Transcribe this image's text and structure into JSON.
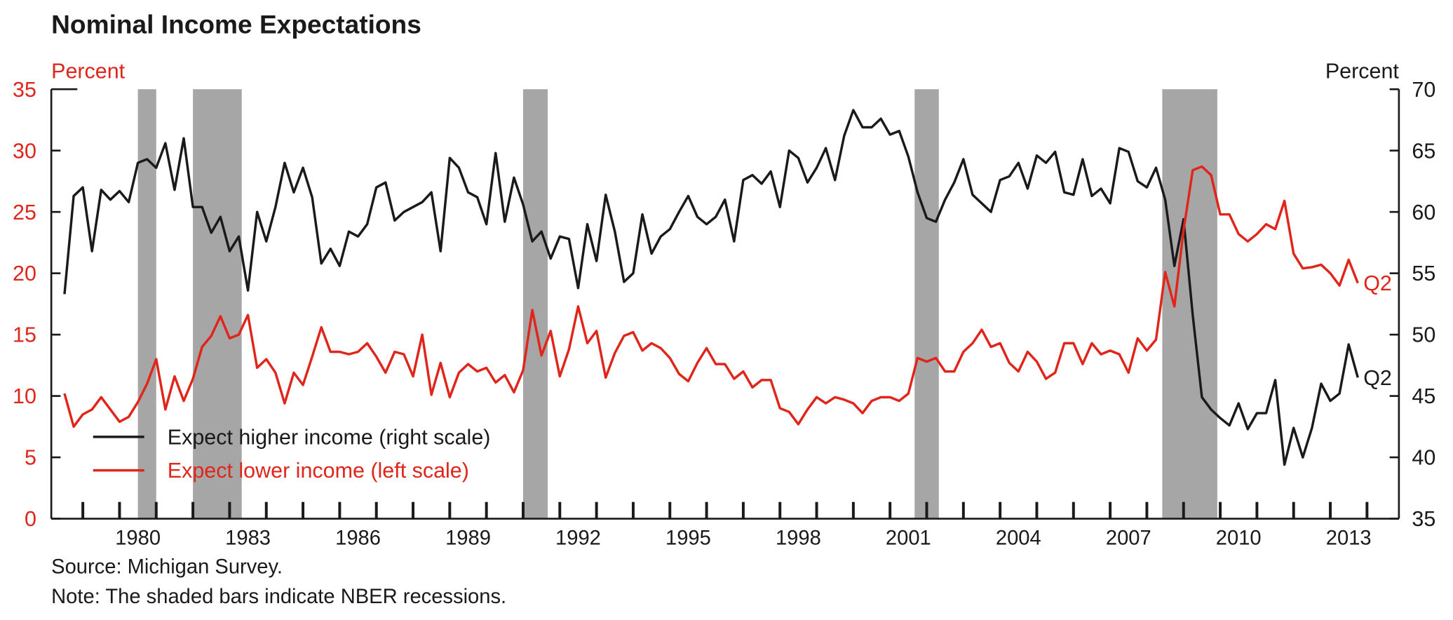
{
  "chart_data": {
    "type": "line",
    "title": "Nominal Income Expectations",
    "ylabel": "Percent",
    "y2label": "Percent",
    "source": "Source: Michigan Survey.",
    "note": "Note: The shaded bars indicate NBER recessions.",
    "legend": "lower left",
    "xlim": [
      1977.64,
      2014.37
    ],
    "xticks": [
      1980,
      1983,
      1986,
      1989,
      1992,
      1995,
      1998,
      2001,
      2004,
      2007,
      2010,
      2013
    ],
    "xticks_minor": [
      1978.5,
      1979.5,
      1980.5,
      1981.5,
      1982.5,
      1983.5,
      1984.5,
      1985.5,
      1986.5,
      1987.5,
      1988.5,
      1989.5,
      1990.5,
      1991.5,
      1992.5,
      1993.5,
      1994.5,
      1995.5,
      1996.5,
      1997.5,
      1998.5,
      1999.5,
      2000.5,
      2001.5,
      2002.5,
      2003.5,
      2004.5,
      2005.5,
      2006.5,
      2007.5,
      2008.5,
      2009.5,
      2010.5,
      2011.5,
      2012.5,
      2013.5
    ],
    "ylim": [
      0,
      35
    ],
    "yticks": [
      0,
      5,
      10,
      15,
      20,
      25,
      30,
      35
    ],
    "y2lim": [
      35,
      70
    ],
    "y2ticks": [
      35,
      40,
      45,
      50,
      55,
      60,
      65,
      70
    ],
    "recessions": [
      [
        1980.0,
        1980.5
      ],
      [
        1981.5,
        1982.83
      ],
      [
        1990.5,
        1991.17
      ],
      [
        2001.17,
        2001.83
      ],
      [
        2007.92,
        2009.42
      ]
    ],
    "recession_color": "#a6a6a6",
    "x": [
      1978,
      1978.25,
      1978.5,
      1978.75,
      1979,
      1979.25,
      1979.5,
      1979.75,
      1980,
      1980.25,
      1980.5,
      1980.75,
      1981,
      1981.25,
      1981.5,
      1981.75,
      1982,
      1982.25,
      1982.5,
      1982.75,
      1983,
      1983.25,
      1983.5,
      1983.75,
      1984,
      1984.25,
      1984.5,
      1984.75,
      1985,
      1985.25,
      1985.5,
      1985.75,
      1986,
      1986.25,
      1986.5,
      1986.75,
      1987,
      1987.25,
      1987.5,
      1987.75,
      1988,
      1988.25,
      1988.5,
      1988.75,
      1989,
      1989.25,
      1989.5,
      1989.75,
      1990,
      1990.25,
      1990.5,
      1990.75,
      1991,
      1991.25,
      1991.5,
      1991.75,
      1992,
      1992.25,
      1992.5,
      1992.75,
      1993,
      1993.25,
      1993.5,
      1993.75,
      1994,
      1994.25,
      1994.5,
      1994.75,
      1995,
      1995.25,
      1995.5,
      1995.75,
      1996,
      1996.25,
      1996.5,
      1996.75,
      1997,
      1997.25,
      1997.5,
      1997.75,
      1998,
      1998.25,
      1998.5,
      1998.75,
      1999,
      1999.25,
      1999.5,
      1999.75,
      2000,
      2000.25,
      2000.5,
      2000.75,
      2001,
      2001.25,
      2001.5,
      2001.75,
      2002,
      2002.25,
      2002.5,
      2002.75,
      2003,
      2003.25,
      2003.5,
      2003.75,
      2004,
      2004.25,
      2004.5,
      2004.75,
      2005,
      2005.25,
      2005.5,
      2005.75,
      2006,
      2006.25,
      2006.5,
      2006.75,
      2007,
      2007.25,
      2007.5,
      2007.75,
      2008,
      2008.25,
      2008.5,
      2008.75,
      2009,
      2009.25,
      2009.5,
      2009.75,
      2010,
      2010.25,
      2010.5,
      2010.75,
      2011,
      2011.25,
      2011.5,
      2011.75,
      2012,
      2012.25,
      2012.5,
      2012.75,
      2013,
      2013.25
    ],
    "series": [
      {
        "name": "Expect higher income (right scale)",
        "color": "#1a1a1a",
        "axis": "y2",
        "values": [
          53.3,
          61.3,
          62.0,
          56.8,
          61.8,
          61.0,
          61.7,
          60.8,
          64.0,
          64.3,
          63.6,
          65.6,
          61.8,
          66.0,
          60.4,
          60.4,
          58.3,
          59.6,
          56.8,
          58.0,
          53.6,
          60.0,
          57.6,
          60.4,
          64.0,
          61.6,
          63.6,
          61.2,
          55.8,
          57.0,
          55.6,
          58.4,
          58.0,
          59.0,
          62.0,
          62.4,
          59.3,
          60.0,
          60.4,
          60.8,
          61.6,
          56.8,
          64.4,
          63.6,
          61.6,
          61.2,
          59.0,
          64.8,
          59.2,
          62.8,
          60.6,
          57.6,
          58.4,
          56.2,
          58.0,
          57.8,
          53.8,
          59.0,
          56.0,
          61.4,
          58.4,
          54.3,
          55.0,
          59.8,
          56.6,
          58.0,
          58.6,
          60.0,
          61.3,
          59.6,
          59.0,
          59.6,
          61.0,
          57.6,
          62.6,
          63.0,
          62.3,
          63.3,
          60.4,
          65.0,
          64.4,
          62.4,
          63.6,
          65.2,
          62.6,
          66.2,
          68.3,
          66.9,
          66.9,
          67.6,
          66.3,
          66.6,
          64.5,
          61.6,
          59.5,
          59.2,
          61.0,
          62.4,
          64.3,
          61.4,
          60.7,
          60.0,
          62.6,
          62.9,
          64.0,
          61.9,
          64.6,
          64.0,
          64.9,
          61.6,
          61.4,
          64.3,
          61.3,
          61.9,
          60.7,
          65.2,
          64.9,
          62.5,
          62.0,
          63.6,
          61.0,
          55.6,
          59.4,
          51.6,
          44.9,
          43.9,
          43.2,
          42.6,
          44.4,
          42.3,
          43.6,
          43.6,
          46.3,
          39.4,
          42.4,
          40.0,
          42.4,
          46.0,
          44.6,
          45.2,
          49.2,
          46.5
        ]
      },
      {
        "name": "Expect lower income (left scale)",
        "color": "#e0251b",
        "axis": "y",
        "values": [
          10.2,
          7.5,
          8.5,
          8.9,
          9.9,
          8.9,
          7.9,
          8.3,
          9.5,
          11.0,
          13.0,
          8.9,
          11.6,
          9.6,
          11.4,
          14.0,
          14.9,
          16.5,
          14.7,
          15.0,
          16.6,
          12.3,
          13.0,
          11.9,
          9.4,
          11.9,
          10.9,
          13.2,
          15.6,
          13.6,
          13.6,
          13.4,
          13.6,
          14.3,
          13.2,
          11.9,
          13.6,
          13.4,
          11.6,
          15.0,
          10.1,
          12.7,
          9.9,
          11.9,
          12.6,
          12.0,
          12.3,
          11.1,
          11.7,
          10.3,
          12.1,
          17.0,
          13.3,
          15.3,
          11.6,
          13.8,
          17.3,
          14.3,
          15.3,
          11.5,
          13.5,
          14.9,
          15.2,
          13.7,
          14.3,
          13.9,
          13.1,
          11.8,
          11.2,
          12.7,
          13.9,
          12.6,
          12.6,
          11.4,
          12.0,
          10.7,
          11.3,
          11.3,
          9.0,
          8.7,
          7.7,
          8.9,
          9.9,
          9.4,
          9.9,
          9.7,
          9.4,
          8.6,
          9.6,
          9.9,
          9.9,
          9.6,
          10.2,
          13.1,
          12.8,
          13.1,
          12.0,
          12.0,
          13.6,
          14.3,
          15.4,
          14.0,
          14.3,
          12.7,
          12.0,
          13.6,
          12.8,
          11.4,
          11.9,
          14.3,
          14.3,
          12.6,
          14.3,
          13.4,
          13.7,
          13.4,
          11.9,
          14.7,
          13.7,
          14.6,
          20.1,
          17.3,
          23.5,
          28.4,
          28.7,
          28.0,
          24.8,
          24.8,
          23.2,
          22.6,
          23.2,
          24.0,
          23.6,
          25.9,
          21.6,
          20.4,
          20.5,
          20.7,
          20.0,
          19.0,
          21.1,
          19.2
        ]
      }
    ],
    "annotations": [
      {
        "text": "Q2",
        "series": 0
      },
      {
        "text": "Q2",
        "series": 1
      }
    ]
  }
}
